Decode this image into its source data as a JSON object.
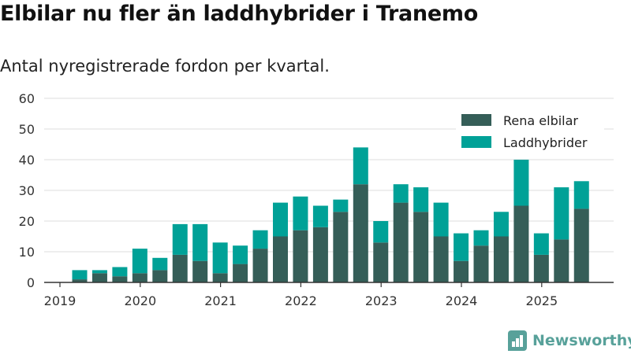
{
  "title": "Elbilar nu fler än laddhybrider i Tranemo",
  "subtitle": "Antal nyregistrerade fordon per kvartal.",
  "brand": {
    "name": "Newsworthy",
    "icon": "bar-chart-logo-icon"
  },
  "colors": {
    "rena_elbilar": "#355e58",
    "laddhybrider": "#00a197",
    "axis": "#333333",
    "grid": "#dddddd"
  },
  "chart_data": {
    "type": "bar",
    "stacked": true,
    "title": "Elbilar nu fler än laddhybrider i Tranemo",
    "subtitle": "Antal nyregistrerade fordon per kvartal.",
    "xlabel": "",
    "ylabel": "",
    "ylim": [
      0,
      60
    ],
    "yticks": [
      "0",
      "10",
      "20",
      "30",
      "40",
      "50",
      "60"
    ],
    "xticks": [
      "2019",
      "2020",
      "2021",
      "2022",
      "2023",
      "2024",
      "2025"
    ],
    "grid": true,
    "legend_position": "top-right",
    "categories": [
      "2019 Q2",
      "2019 Q3",
      "2019 Q4",
      "2020 Q1",
      "2020 Q2",
      "2020 Q3",
      "2020 Q4",
      "2021 Q1",
      "2021 Q2",
      "2021 Q3",
      "2021 Q4",
      "2022 Q1",
      "2022 Q2",
      "2022 Q3",
      "2022 Q4",
      "2023 Q1",
      "2023 Q2",
      "2023 Q3",
      "2023 Q4",
      "2024 Q1",
      "2024 Q2",
      "2024 Q3",
      "2024 Q4",
      "2025 Q1",
      "2025 Q2",
      "2025 Q3"
    ],
    "series": [
      {
        "name": "Rena elbilar",
        "values": [
          1,
          3,
          2,
          3,
          4,
          9,
          7,
          3,
          6,
          11,
          15,
          17,
          18,
          23,
          32,
          13,
          26,
          23,
          15,
          7,
          12,
          15,
          25,
          9,
          14,
          24
        ]
      },
      {
        "name": "Laddhybrider",
        "values": [
          3,
          1,
          3,
          8,
          4,
          10,
          12,
          10,
          6,
          6,
          11,
          11,
          7,
          4,
          12,
          7,
          6,
          8,
          11,
          9,
          5,
          8,
          15,
          7,
          17,
          9
        ]
      }
    ]
  }
}
